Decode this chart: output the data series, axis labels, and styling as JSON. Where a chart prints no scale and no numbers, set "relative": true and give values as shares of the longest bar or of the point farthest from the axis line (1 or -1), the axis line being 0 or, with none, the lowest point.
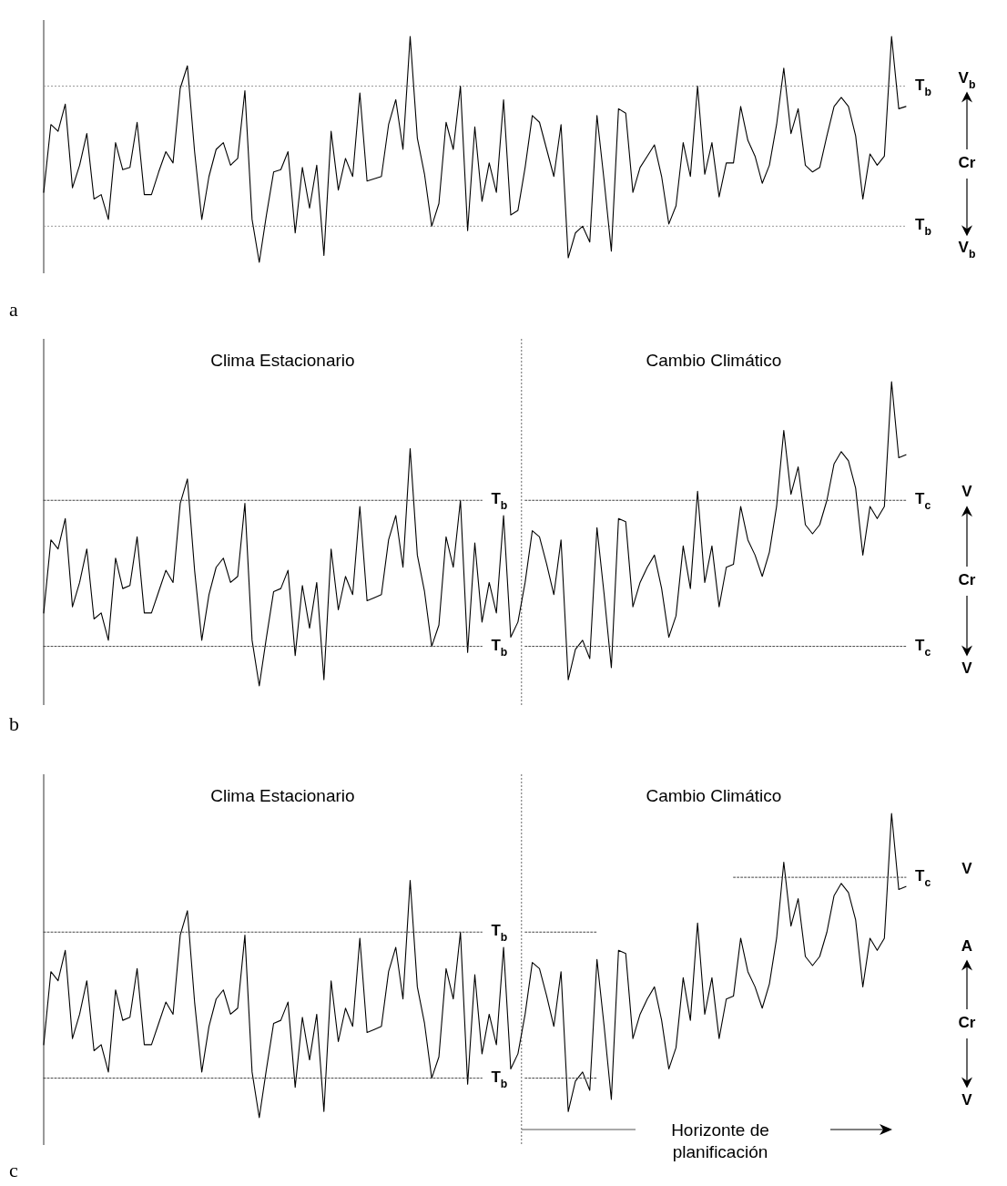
{
  "chart_data": [
    {
      "type": "line",
      "title": "a",
      "relative": true,
      "categories": [
        null,
        null,
        null,
        null,
        null,
        null,
        null,
        null,
        null,
        null,
        null,
        null,
        null,
        null,
        null,
        null,
        null,
        null,
        null,
        null,
        null,
        null,
        null,
        null,
        null,
        null,
        null,
        null,
        null,
        null,
        null,
        null,
        null,
        null,
        null,
        null,
        null,
        null,
        null,
        null,
        null,
        null,
        null,
        null,
        null,
        null,
        null,
        null,
        null,
        null,
        null,
        null,
        null,
        null,
        null,
        null,
        null,
        null,
        null,
        null,
        null,
        null,
        null,
        null,
        null,
        null,
        null,
        null,
        null,
        null,
        null,
        null,
        null,
        null,
        null,
        null,
        null,
        null,
        null,
        null,
        null,
        null,
        null,
        null,
        null,
        null,
        null,
        null,
        null,
        null,
        null,
        null,
        null,
        null,
        null,
        null,
        null,
        null,
        null,
        null,
        null,
        null,
        null,
        null,
        null,
        null,
        null,
        null,
        null,
        null,
        null,
        null,
        null,
        null,
        null,
        null,
        null,
        null,
        null,
        null,
        null
      ],
      "series": [
        {
          "color": "#000000",
          "line_style": "solid",
          "values": [
            0.31,
            0.61,
            0.58,
            0.7,
            0.33,
            0.43,
            0.57,
            0.28,
            0.3,
            0.19,
            0.53,
            0.41,
            0.42,
            0.62,
            0.3,
            0.3,
            0.4,
            0.49,
            0.44,
            0.77,
            0.87,
            0.49,
            0.19,
            0.38,
            0.5,
            0.53,
            0.43,
            0.46,
            0.76,
            0.19,
            0,
            0.21,
            0.4,
            0.41,
            0.49,
            0.13,
            0.42,
            0.24,
            0.43,
            0.03,
            0.58,
            0.32,
            0.46,
            0.38,
            0.75,
            0.36,
            0.37,
            0.38,
            0.61,
            0.72,
            0.5,
            1,
            0.55,
            0.39,
            0.16,
            0.26,
            0.62,
            0.5,
            0.78,
            0.14,
            0.6,
            0.27,
            0.44,
            0.31,
            0.72,
            0.21,
            0.23,
            0.42,
            0.65,
            0.62,
            0.5,
            0.38,
            0.61,
            0.02,
            0.13,
            0.16,
            0.09,
            0.65,
            0.36,
            0.05,
            0.68,
            0.66,
            0.31,
            0.42,
            0.47,
            0.52,
            0.38,
            0.17,
            0.25,
            0.53,
            0.38,
            0.78,
            0.39,
            0.53,
            0.29,
            0.44,
            0.44,
            0.69,
            0.54,
            0.47,
            0.35,
            0.43,
            0.61,
            0.86,
            0.57,
            0.68,
            0.43,
            0.4,
            0.42,
            0.56,
            0.69,
            0.73,
            0.69,
            0.56,
            0.28,
            0.48,
            0.43,
            0.47,
            1,
            0.68,
            0.69
          ]
        }
      ],
      "ref_lines": [
        {
          "axis": "y",
          "value": 0.78,
          "label": "T$_{b}$",
          "color": "#999999",
          "line_style": "dotted"
        },
        {
          "axis": "y",
          "value": 0.16,
          "label": "T$_{b}$",
          "color": "#999999",
          "line_style": "dotted"
        }
      ],
      "annotations": [
        "V$_{b}$",
        "Cr",
        "V$_{b}$"
      ]
    },
    {
      "type": "line",
      "title": "b",
      "relative": true,
      "categories": [
        null,
        null,
        null,
        null,
        null,
        null,
        null,
        null,
        null,
        null,
        null,
        null,
        null,
        null,
        null,
        null,
        null,
        null,
        null,
        null,
        null,
        null,
        null,
        null,
        null,
        null,
        null,
        null,
        null,
        null,
        null,
        null,
        null,
        null,
        null,
        null,
        null,
        null,
        null,
        null,
        null,
        null,
        null,
        null,
        null,
        null,
        null,
        null,
        null,
        null,
        null,
        null,
        null,
        null,
        null,
        null,
        null,
        null,
        null,
        null,
        null,
        null,
        null,
        null,
        null,
        null,
        null,
        null,
        null,
        null,
        null,
        null,
        null,
        null,
        null,
        null,
        null,
        null,
        null,
        null,
        null,
        null,
        null,
        null,
        null,
        null,
        null,
        null,
        null,
        null,
        null,
        null,
        null,
        null,
        null,
        null,
        null,
        null,
        null,
        null,
        null,
        null,
        null,
        null,
        null,
        null,
        null,
        null,
        null,
        null,
        null,
        null,
        null,
        null,
        null,
        null,
        null,
        null,
        null,
        null,
        null
      ],
      "series": [
        {
          "color": "#000000",
          "line_style": "solid",
          "values": [
            0.24,
            0.48,
            0.45,
            0.55,
            0.26,
            0.34,
            0.45,
            0.22,
            0.24,
            0.15,
            0.42,
            0.32,
            0.33,
            0.49,
            0.24,
            0.24,
            0.31,
            0.38,
            0.34,
            0.6,
            0.68,
            0.38,
            0.15,
            0.3,
            0.39,
            0.42,
            0.34,
            0.36,
            0.6,
            0.15,
            0,
            0.16,
            0.31,
            0.32,
            0.38,
            0.1,
            0.33,
            0.19,
            0.34,
            0.02,
            0.45,
            0.25,
            0.36,
            0.3,
            0.59,
            0.28,
            0.29,
            0.3,
            0.48,
            0.56,
            0.39,
            0.78,
            0.43,
            0.31,
            0.13,
            0.2,
            0.49,
            0.39,
            0.61,
            0.11,
            0.47,
            0.21,
            0.34,
            0.24,
            0.56,
            0.16,
            0.21,
            0.34,
            0.51,
            0.49,
            0.4,
            0.3,
            0.48,
            0.02,
            0.12,
            0.15,
            0.09,
            0.52,
            0.3,
            0.06,
            0.55,
            0.54,
            0.26,
            0.34,
            0.39,
            0.43,
            0.32,
            0.16,
            0.23,
            0.46,
            0.32,
            0.64,
            0.34,
            0.46,
            0.26,
            0.39,
            0.4,
            0.59,
            0.48,
            0.43,
            0.36,
            0.44,
            0.59,
            0.84,
            0.63,
            0.72,
            0.53,
            0.5,
            0.53,
            0.61,
            0.73,
            0.77,
            0.74,
            0.65,
            0.43,
            0.59,
            0.55,
            0.59,
            1,
            0.75,
            0.76
          ]
        },
        {
          "name": "T$_{b}$",
          "color": "#444444",
          "line_style": "dotted",
          "values": [
            0.61,
            0.61,
            0.61,
            0.61,
            0.61,
            0.61,
            0.61,
            0.61,
            0.61,
            0.61,
            0.61,
            0.61,
            0.61,
            0.61,
            0.61,
            0.61,
            0.61,
            0.61,
            0.61,
            0.61,
            0.61,
            0.61,
            0.61,
            0.61,
            0.61,
            0.61,
            0.61,
            0.61,
            0.61,
            0.61,
            0.61,
            0.61,
            0.61,
            0.61,
            0.61,
            0.61,
            0.61,
            0.61,
            0.61,
            0.61,
            0.61,
            0.61,
            0.61,
            0.61,
            0.61,
            0.61,
            0.61,
            0.61,
            0.61,
            0.61,
            0.61,
            0.61,
            0.61,
            0.61,
            0.61,
            0.61,
            0.61,
            0.61,
            0.61,
            0.61,
            0.61,
            0.61,
            null,
            null,
            null,
            null,
            null,
            null,
            null,
            null,
            null,
            null,
            null,
            null,
            null,
            null,
            null,
            null,
            null,
            null,
            null,
            null,
            null,
            null,
            null,
            null,
            null,
            null,
            null,
            null,
            null,
            null,
            null,
            null,
            null,
            null,
            null,
            null,
            null,
            null,
            null,
            null,
            null,
            null,
            null,
            null,
            null,
            null,
            null,
            null,
            null,
            null,
            null,
            null,
            null,
            null,
            null,
            null,
            null,
            null,
            null
          ]
        },
        {
          "name": "T$_{b}$",
          "color": "#444444",
          "line_style": "dotted",
          "values": [
            0.13,
            0.13,
            0.13,
            0.13,
            0.13,
            0.13,
            0.13,
            0.13,
            0.13,
            0.13,
            0.13,
            0.13,
            0.13,
            0.13,
            0.13,
            0.13,
            0.13,
            0.13,
            0.13,
            0.13,
            0.13,
            0.13,
            0.13,
            0.13,
            0.13,
            0.13,
            0.13,
            0.13,
            0.13,
            0.13,
            0.13,
            0.13,
            0.13,
            0.13,
            0.13,
            0.13,
            0.13,
            0.13,
            0.13,
            0.13,
            0.13,
            0.13,
            0.13,
            0.13,
            0.13,
            0.13,
            0.13,
            0.13,
            0.13,
            0.13,
            0.13,
            0.13,
            0.13,
            0.13,
            0.13,
            0.13,
            0.13,
            0.13,
            0.13,
            0.13,
            0.13,
            0.13,
            null,
            null,
            null,
            null,
            null,
            null,
            null,
            null,
            null,
            null,
            null,
            null,
            null,
            null,
            null,
            null,
            null,
            null,
            null,
            null,
            null,
            null,
            null,
            null,
            null,
            null,
            null,
            null,
            null,
            null,
            null,
            null,
            null,
            null,
            null,
            null,
            null,
            null,
            null,
            null,
            null,
            null,
            null,
            null,
            null,
            null,
            null,
            null,
            null,
            null,
            null,
            null,
            null,
            null,
            null,
            null,
            null,
            null,
            null
          ]
        },
        {
          "name": "T$_{c}$",
          "color": "#444444",
          "line_style": "dotted",
          "values": [
            null,
            null,
            null,
            null,
            null,
            null,
            null,
            null,
            null,
            null,
            null,
            null,
            null,
            null,
            null,
            null,
            null,
            null,
            null,
            null,
            null,
            null,
            null,
            null,
            null,
            null,
            null,
            null,
            null,
            null,
            null,
            null,
            null,
            null,
            null,
            null,
            null,
            null,
            null,
            null,
            null,
            null,
            null,
            null,
            null,
            null,
            null,
            null,
            null,
            null,
            null,
            null,
            null,
            null,
            null,
            null,
            null,
            null,
            null,
            null,
            null,
            null,
            null,
            null,
            null,
            null,
            null,
            0.61,
            0.61,
            0.61,
            0.61,
            0.61,
            0.61,
            0.61,
            0.61,
            0.61,
            0.61,
            0.61,
            0.61,
            0.61,
            0.61,
            0.61,
            0.61,
            0.61,
            0.61,
            0.61,
            0.61,
            0.61,
            0.61,
            0.61,
            0.61,
            0.61,
            0.61,
            0.61,
            0.61,
            0.61,
            0.61,
            0.61,
            0.61,
            0.61,
            0.61,
            0.61,
            0.61,
            0.61,
            0.61,
            0.61,
            0.61,
            0.61,
            0.61,
            0.61,
            0.61,
            0.61,
            0.61,
            0.61,
            0.61,
            0.61,
            0.61,
            0.61,
            0.61,
            0.61,
            0.61
          ]
        },
        {
          "name": "T$_{c}$",
          "color": "#444444",
          "line_style": "dotted",
          "values": [
            null,
            null,
            null,
            null,
            null,
            null,
            null,
            null,
            null,
            null,
            null,
            null,
            null,
            null,
            null,
            null,
            null,
            null,
            null,
            null,
            null,
            null,
            null,
            null,
            null,
            null,
            null,
            null,
            null,
            null,
            null,
            null,
            null,
            null,
            null,
            null,
            null,
            null,
            null,
            null,
            null,
            null,
            null,
            null,
            null,
            null,
            null,
            null,
            null,
            null,
            null,
            null,
            null,
            null,
            null,
            null,
            null,
            null,
            null,
            null,
            null,
            null,
            null,
            null,
            null,
            null,
            null,
            0.13,
            0.13,
            0.13,
            0.13,
            0.13,
            0.13,
            0.13,
            0.13,
            0.13,
            0.13,
            0.13,
            0.13,
            0.13,
            0.13,
            0.13,
            0.13,
            0.13,
            0.13,
            0.13,
            0.13,
            0.13,
            0.13,
            0.13,
            0.13,
            0.13,
            0.13,
            0.13,
            0.13,
            0.13,
            0.13,
            0.13,
            0.13,
            0.13,
            0.13,
            0.13,
            0.13,
            0.13,
            0.13,
            0.13,
            0.13,
            0.13,
            0.13,
            0.13,
            0.13,
            0.13,
            0.13,
            0.13,
            0.13,
            0.13,
            0.13,
            0.13,
            0.13,
            0.13,
            0.13
          ]
        }
      ],
      "annotations": [
        "Clima Estacionario",
        "Cambio Climático",
        "V",
        "Cr",
        "V"
      ]
    },
    {
      "type": "line",
      "title": "c",
      "relative": true,
      "xlabel": "Horizonte de planificación",
      "categories": [
        null,
        null,
        null,
        null,
        null,
        null,
        null,
        null,
        null,
        null,
        null,
        null,
        null,
        null,
        null,
        null,
        null,
        null,
        null,
        null,
        null,
        null,
        null,
        null,
        null,
        null,
        null,
        null,
        null,
        null,
        null,
        null,
        null,
        null,
        null,
        null,
        null,
        null,
        null,
        null,
        null,
        null,
        null,
        null,
        null,
        null,
        null,
        null,
        null,
        null,
        null,
        null,
        null,
        null,
        null,
        null,
        null,
        null,
        null,
        null,
        null,
        null,
        null,
        null,
        null,
        null,
        null,
        null,
        null,
        null,
        null,
        null,
        null,
        null,
        null,
        null,
        null,
        null,
        null,
        null,
        null,
        null,
        null,
        null,
        null,
        null,
        null,
        null,
        null,
        null,
        null,
        null,
        null,
        null,
        null,
        null,
        null,
        null,
        null,
        null,
        null,
        null,
        null,
        null,
        null,
        null,
        null,
        null,
        null,
        null,
        null,
        null,
        null,
        null,
        null,
        null,
        null,
        null,
        null,
        null,
        null
      ],
      "series": [
        {
          "color": "#000000",
          "line_style": "solid",
          "values": [
            0.24,
            0.48,
            0.45,
            0.55,
            0.26,
            0.34,
            0.45,
            0.22,
            0.24,
            0.15,
            0.42,
            0.32,
            0.33,
            0.49,
            0.24,
            0.24,
            0.31,
            0.38,
            0.34,
            0.6,
            0.68,
            0.38,
            0.15,
            0.3,
            0.39,
            0.42,
            0.34,
            0.36,
            0.6,
            0.15,
            0,
            0.16,
            0.31,
            0.32,
            0.38,
            0.1,
            0.33,
            0.19,
            0.34,
            0.02,
            0.45,
            0.25,
            0.36,
            0.3,
            0.59,
            0.28,
            0.29,
            0.3,
            0.48,
            0.56,
            0.39,
            0.78,
            0.43,
            0.31,
            0.13,
            0.2,
            0.49,
            0.39,
            0.61,
            0.11,
            0.47,
            0.21,
            0.34,
            0.24,
            0.56,
            0.16,
            0.21,
            0.34,
            0.51,
            0.49,
            0.4,
            0.3,
            0.48,
            0.02,
            0.12,
            0.15,
            0.09,
            0.52,
            0.3,
            0.06,
            0.55,
            0.54,
            0.26,
            0.34,
            0.39,
            0.43,
            0.32,
            0.16,
            0.23,
            0.46,
            0.32,
            0.64,
            0.34,
            0.46,
            0.26,
            0.39,
            0.4,
            0.59,
            0.48,
            0.43,
            0.36,
            0.44,
            0.59,
            0.84,
            0.63,
            0.72,
            0.53,
            0.5,
            0.53,
            0.61,
            0.73,
            0.77,
            0.74,
            0.65,
            0.43,
            0.59,
            0.55,
            0.59,
            1,
            0.75,
            0.76
          ]
        },
        {
          "name": "T$_{b}$",
          "color": "#444444",
          "line_style": "dotted",
          "values": [
            0.61,
            0.61,
            0.61,
            0.61,
            0.61,
            0.61,
            0.61,
            0.61,
            0.61,
            0.61,
            0.61,
            0.61,
            0.61,
            0.61,
            0.61,
            0.61,
            0.61,
            0.61,
            0.61,
            0.61,
            0.61,
            0.61,
            0.61,
            0.61,
            0.61,
            0.61,
            0.61,
            0.61,
            0.61,
            0.61,
            0.61,
            0.61,
            0.61,
            0.61,
            0.61,
            0.61,
            0.61,
            0.61,
            0.61,
            0.61,
            0.61,
            0.61,
            0.61,
            0.61,
            0.61,
            0.61,
            0.61,
            0.61,
            0.61,
            0.61,
            0.61,
            0.61,
            0.61,
            0.61,
            0.61,
            0.61,
            0.61,
            0.61,
            0.61,
            0.61,
            0.61,
            0.61,
            null,
            null,
            null,
            null,
            null,
            null,
            null,
            null,
            null,
            null,
            null,
            null,
            null,
            null,
            null,
            null,
            null,
            null,
            null,
            null,
            null,
            null,
            null,
            null,
            null,
            null,
            null,
            null,
            null,
            null,
            null,
            null,
            null,
            null,
            null,
            null,
            null,
            null,
            null,
            null,
            null,
            null,
            null,
            null,
            null,
            null,
            null,
            null,
            null,
            null,
            null,
            null,
            null,
            null,
            null,
            null,
            null,
            null,
            null
          ]
        },
        {
          "name": "T$_{b}$",
          "color": "#444444",
          "line_style": "dotted",
          "values": [
            0.13,
            0.13,
            0.13,
            0.13,
            0.13,
            0.13,
            0.13,
            0.13,
            0.13,
            0.13,
            0.13,
            0.13,
            0.13,
            0.13,
            0.13,
            0.13,
            0.13,
            0.13,
            0.13,
            0.13,
            0.13,
            0.13,
            0.13,
            0.13,
            0.13,
            0.13,
            0.13,
            0.13,
            0.13,
            0.13,
            0.13,
            0.13,
            0.13,
            0.13,
            0.13,
            0.13,
            0.13,
            0.13,
            0.13,
            0.13,
            0.13,
            0.13,
            0.13,
            0.13,
            0.13,
            0.13,
            0.13,
            0.13,
            0.13,
            0.13,
            0.13,
            0.13,
            0.13,
            0.13,
            0.13,
            0.13,
            0.13,
            0.13,
            0.13,
            0.13,
            0.13,
            0.13,
            null,
            null,
            null,
            null,
            null,
            null,
            null,
            null,
            null,
            null,
            null,
            null,
            null,
            null,
            null,
            null,
            null,
            null,
            null,
            null,
            null,
            null,
            null,
            null,
            null,
            null,
            null,
            null,
            null,
            null,
            null,
            null,
            null,
            null,
            null,
            null,
            null,
            null,
            null,
            null,
            null,
            null,
            null,
            null,
            null,
            null,
            null,
            null,
            null,
            null,
            null,
            null,
            null,
            null,
            null,
            null,
            null,
            null,
            null
          ]
        },
        {
          "color": "#444444",
          "line_style": "dotted",
          "values": [
            null,
            null,
            null,
            null,
            null,
            null,
            null,
            null,
            null,
            null,
            null,
            null,
            null,
            null,
            null,
            null,
            null,
            null,
            null,
            null,
            null,
            null,
            null,
            null,
            null,
            null,
            null,
            null,
            null,
            null,
            null,
            null,
            null,
            null,
            null,
            null,
            null,
            null,
            null,
            null,
            null,
            null,
            null,
            null,
            null,
            null,
            null,
            null,
            null,
            null,
            null,
            null,
            null,
            null,
            null,
            null,
            null,
            null,
            null,
            null,
            null,
            null,
            null,
            null,
            null,
            null,
            null,
            0.61,
            0.61,
            0.61,
            0.61,
            0.61,
            0.61,
            0.61,
            0.61,
            0.61,
            0.61,
            0.61,
            null,
            null,
            null,
            null,
            null,
            null,
            null,
            null,
            null,
            null,
            null,
            null,
            null,
            null,
            null,
            null,
            null,
            null,
            null,
            null,
            null,
            null,
            null,
            null,
            null,
            null,
            null,
            null,
            null,
            null,
            null,
            null,
            null,
            null,
            null,
            null,
            null,
            null,
            null,
            null,
            null,
            null,
            null
          ]
        },
        {
          "color": "#444444",
          "line_style": "dotted",
          "values": [
            null,
            null,
            null,
            null,
            null,
            null,
            null,
            null,
            null,
            null,
            null,
            null,
            null,
            null,
            null,
            null,
            null,
            null,
            null,
            null,
            null,
            null,
            null,
            null,
            null,
            null,
            null,
            null,
            null,
            null,
            null,
            null,
            null,
            null,
            null,
            null,
            null,
            null,
            null,
            null,
            null,
            null,
            null,
            null,
            null,
            null,
            null,
            null,
            null,
            null,
            null,
            null,
            null,
            null,
            null,
            null,
            null,
            null,
            null,
            null,
            null,
            null,
            null,
            null,
            null,
            null,
            null,
            0.13,
            0.13,
            0.13,
            0.13,
            0.13,
            0.13,
            0.13,
            0.13,
            0.13,
            0.13,
            0.13,
            null,
            null,
            null,
            null,
            null,
            null,
            null,
            null,
            null,
            null,
            null,
            null,
            null,
            null,
            null,
            null,
            null,
            null,
            null,
            null,
            null,
            null,
            null,
            null,
            null,
            null,
            null,
            null,
            null,
            null,
            null,
            null,
            null,
            null,
            null,
            null,
            null,
            null,
            null,
            null,
            null,
            null,
            null
          ]
        },
        {
          "name": "T$_{c}$",
          "color": "#444444",
          "line_style": "dotted",
          "values": [
            null,
            null,
            null,
            null,
            null,
            null,
            null,
            null,
            null,
            null,
            null,
            null,
            null,
            null,
            null,
            null,
            null,
            null,
            null,
            null,
            null,
            null,
            null,
            null,
            null,
            null,
            null,
            null,
            null,
            null,
            null,
            null,
            null,
            null,
            null,
            null,
            null,
            null,
            null,
            null,
            null,
            null,
            null,
            null,
            null,
            null,
            null,
            null,
            null,
            null,
            null,
            null,
            null,
            null,
            null,
            null,
            null,
            null,
            null,
            null,
            null,
            null,
            null,
            null,
            null,
            null,
            null,
            null,
            null,
            null,
            null,
            null,
            null,
            null,
            null,
            null,
            null,
            null,
            null,
            null,
            null,
            null,
            null,
            null,
            null,
            null,
            null,
            null,
            null,
            null,
            null,
            null,
            null,
            null,
            null,
            null,
            0.79,
            0.79,
            0.79,
            0.79,
            0.79,
            0.79,
            0.79,
            0.79,
            0.79,
            0.79,
            0.79,
            0.79,
            0.79,
            0.79,
            0.79,
            0.79,
            0.79,
            0.79,
            0.79,
            0.79,
            0.79,
            0.79,
            0.79,
            0.79,
            0.79
          ]
        }
      ],
      "annotations": [
        "Clima Estacionario",
        "Cambio Climático",
        "V",
        "A",
        "Cr",
        "V"
      ]
    }
  ]
}
